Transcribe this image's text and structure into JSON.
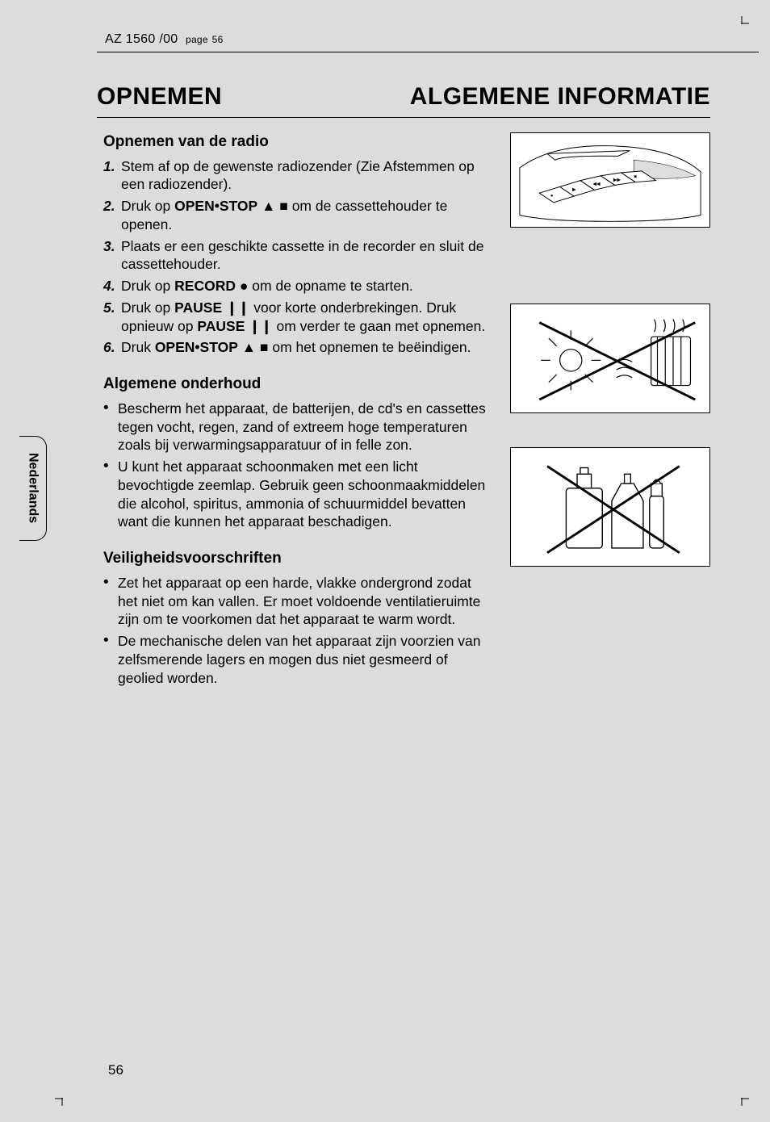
{
  "header": {
    "model": "AZ 1560 /00",
    "page_label": "page",
    "page_header_num": "56"
  },
  "titles": {
    "left": "OPNEMEN",
    "right": "ALGEMENE INFORMATIE"
  },
  "lang_tab": "Nederlands",
  "footer_page": "56",
  "section_radio": {
    "heading": "Opnemen van de radio",
    "steps": [
      {
        "n": "1.",
        "pre": "Stem af op de gewenste radiozender (Zie Afstemmen op een radiozender)."
      },
      {
        "n": "2.",
        "pre": "Druk op ",
        "bold": "OPEN•STOP",
        "sym": " ▲ ■",
        "post": "  om de cassettehouder te openen."
      },
      {
        "n": "3.",
        "pre": "Plaats er een geschikte cassette in de recorder en sluit de cassettehouder."
      },
      {
        "n": "4.",
        "pre": "Druk op ",
        "bold": "RECORD",
        "sym": " ●",
        "post": "  om de opname te starten."
      },
      {
        "n": "5.",
        "pre": "Druk op ",
        "bold": "PAUSE",
        "sym": " ❙❙",
        "post": "  voor korte onderbrekingen. Druk opnieuw op ",
        "bold2": "PAUSE",
        "sym2": " ❙❙",
        "post2": "  om verder te gaan met opnemen."
      },
      {
        "n": "6.",
        "pre": "Druk ",
        "bold": "OPEN•STOP",
        "sym": " ▲ ■",
        "post": "  om het opnemen te beëindigen."
      }
    ]
  },
  "section_maint": {
    "heading": "Algemene onderhoud",
    "items": [
      "Bescherm het apparaat, de batterijen, de cd's en cassettes tegen vocht, regen, zand of extreem hoge temperaturen zoals bij verwarmingsapparatuur of in felle zon.",
      "U kunt het apparaat schoonmaken met een licht bevochtigde zeemlap. Gebruik geen schoonmaakmiddelen die alcohol, spiritus, ammonia of schuurmiddel bevatten want die kunnen het apparaat beschadigen."
    ]
  },
  "section_safety": {
    "heading": "Veiligheidsvoorschriften",
    "items": [
      "Zet het apparaat op een harde, vlakke ondergrond zodat het niet om kan vallen. Er moet voldoende ventilatieruimte zijn om te voorkomen dat het apparaat te warm wordt.",
      "De mechanische delen van het apparaat zijn voorzien van zelfsmerende lagers en mogen dus niet gesmeerd of geolied worden."
    ]
  },
  "illus": {
    "h1": 118,
    "h2": 136,
    "h3": 148
  }
}
